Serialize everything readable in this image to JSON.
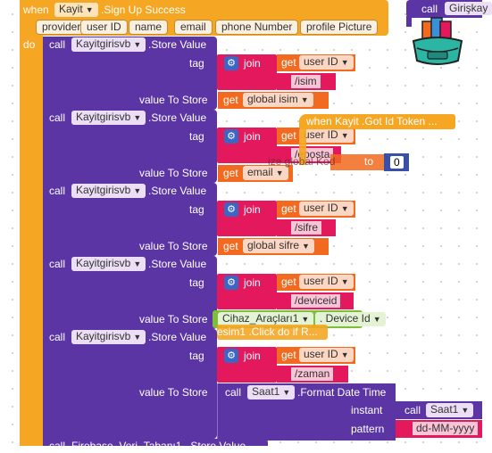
{
  "event_block": {
    "keyword": "when",
    "component": "Kayit",
    "event": ".Sign Up Success",
    "do_label": "do",
    "params": [
      "provider",
      "user ID",
      "name",
      "email",
      "phone Number",
      "profile Picture"
    ]
  },
  "right_top_block": {
    "call_label": "call",
    "component": "Girişkay"
  },
  "blocks": [
    {
      "call_label": "call",
      "component": "Kayitgirisvb",
      "method": ".Store Value",
      "tag_label": "tag",
      "join_label": "join",
      "get_label": "get",
      "var": "user ID",
      "string": "/isim",
      "value_label": "value To Store",
      "value_get": "get",
      "value": "global isim"
    },
    {
      "call_label": "call",
      "component": "Kayitgirisvb",
      "method": ".Store Value",
      "tag_label": "tag",
      "join_label": "join",
      "get_label": "get",
      "var": "user ID",
      "string": "/eposta",
      "value_label": "value To Store",
      "value_get": "get",
      "value": "email"
    },
    {
      "call_label": "call",
      "component": "Kayitgirisvb",
      "method": ".Store Value",
      "tag_label": "tag",
      "join_label": "join",
      "get_label": "get",
      "var": "user ID",
      "string": "/sifre",
      "value_label": "value To Store",
      "value_get": "get",
      "value": "global sifre"
    },
    {
      "call_label": "call",
      "component": "Kayitgirisvb",
      "method": ".Store Value",
      "tag_label": "tag",
      "join_label": "join",
      "get_label": "get",
      "var": "user ID",
      "string": "/deviceid",
      "value_label": "value To Store",
      "value_component": "Cihaz_Araçları1",
      "value_prop": ". Device Id"
    },
    {
      "call_label": "call",
      "component": "Kayitgirisvb",
      "method": ".Store Value",
      "tag_label": "tag",
      "join_label": "join",
      "get_label": "get",
      "var": "user ID",
      "string": "/zaman",
      "value_label": "value To Store",
      "value_call": "call",
      "value_component": "Saat1",
      "value_method": ".Format Date Time",
      "instant_label": "instant",
      "instant_call": "call",
      "instant_component": "Saat1",
      "pattern_label": "pattern",
      "pattern_value": "dd-MM-yyyy"
    }
  ],
  "bottom_block": {
    "call_label": "call",
    "text": "Firebase_Veri_Tabanı1 . Store Value"
  },
  "overlap": {
    "token_event": "when  Kayit .Got Id Token ...",
    "global_text": "ize global Kod",
    "global_to": "to",
    "global_value": "0",
    "click_text": "esim1 .Click do if R..."
  },
  "colors": {
    "event": "#f5a623",
    "procedure": "#5b35a3",
    "text": "#e3185d",
    "variable": "#f26a1f",
    "component": "#7dbf3b"
  },
  "icons": [
    "mutator-gear-icon",
    "backpack-icon",
    "dropdown-arrow-icon"
  ]
}
